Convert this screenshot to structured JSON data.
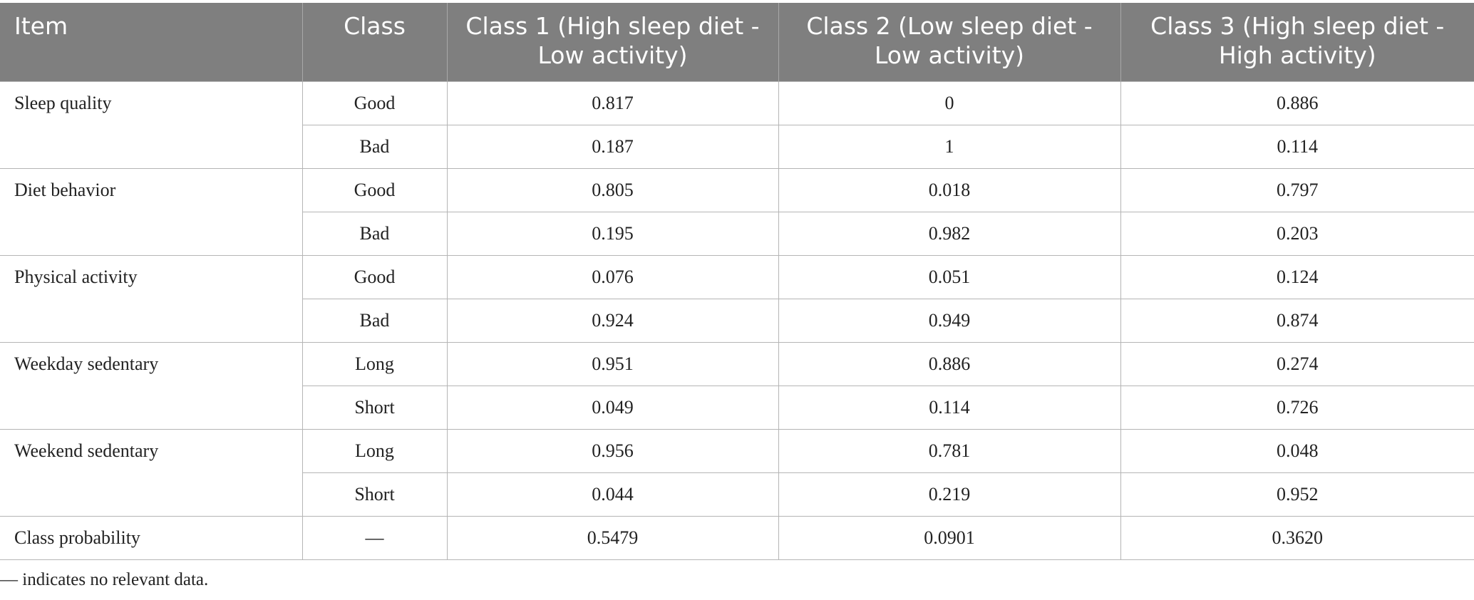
{
  "table": {
    "headers": [
      "Item",
      "Class",
      "Class 1 (High sleep diet - Low activity)",
      "Class 2 (Low sleep diet - Low activity)",
      "Class 3 (High sleep diet - High activity)"
    ],
    "rows": [
      {
        "item": "Sleep quality",
        "cells": [
          [
            "Good",
            "0.817",
            "0",
            "0.886"
          ],
          [
            "Bad",
            "0.187",
            "1",
            "0.114"
          ]
        ]
      },
      {
        "item": "Diet behavior",
        "cells": [
          [
            "Good",
            "0.805",
            "0.018",
            "0.797"
          ],
          [
            "Bad",
            "0.195",
            "0.982",
            "0.203"
          ]
        ]
      },
      {
        "item": "Physical activity",
        "cells": [
          [
            "Good",
            "0.076",
            "0.051",
            "0.124"
          ],
          [
            "Bad",
            "0.924",
            "0.949",
            "0.874"
          ]
        ]
      },
      {
        "item": "Weekday sedentary",
        "cells": [
          [
            "Long",
            "0.951",
            "0.886",
            "0.274"
          ],
          [
            "Short",
            "0.049",
            "0.114",
            "0.726"
          ]
        ]
      },
      {
        "item": "Weekend sedentary",
        "cells": [
          [
            "Long",
            "0.956",
            "0.781",
            "0.048"
          ],
          [
            "Short",
            "0.044",
            "0.219",
            "0.952"
          ]
        ]
      },
      {
        "item": "Class probability",
        "cells": [
          [
            "—",
            "0.5479",
            "0.0901",
            "0.3620"
          ]
        ]
      }
    ]
  },
  "footnote": "— indicates no relevant data.",
  "colors": {
    "header_bg": "#7f7f7f",
    "header_text": "#ffffff",
    "grid": "#b5b5b5"
  }
}
